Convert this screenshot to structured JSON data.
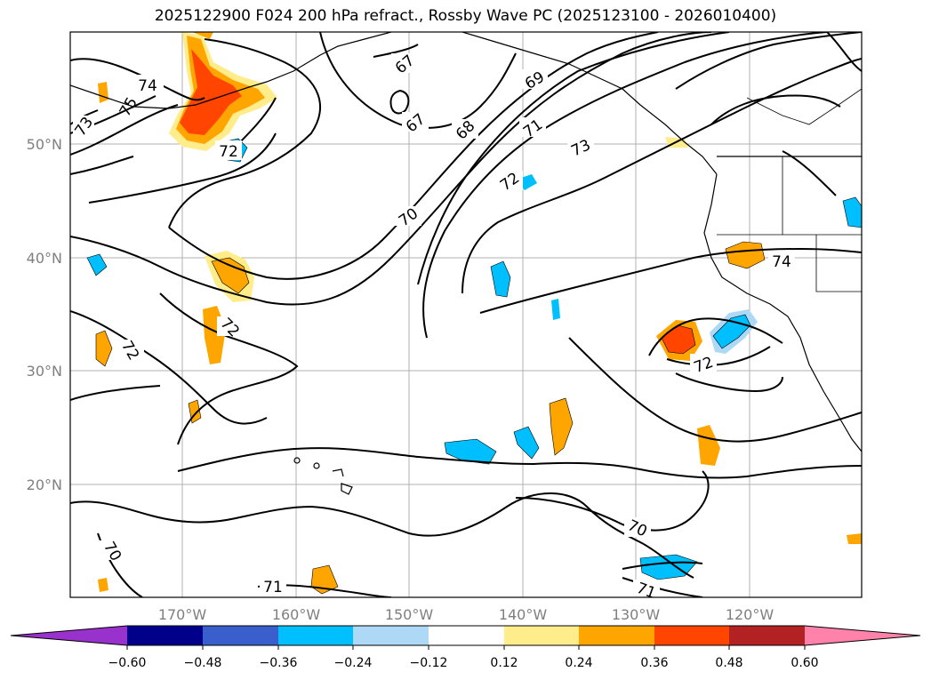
{
  "title": "2025122900 F024 200 hPa refract., Rossby Wave PC (2025123100 - 2026010400)",
  "lat_labels": [
    "50°N",
    "40°N",
    "30°N",
    "20°N"
  ],
  "lon_labels": [
    "170°W",
    "160°W",
    "150°W",
    "140°W",
    "130°W",
    "120°W"
  ],
  "contour_labels": [
    "67",
    "67",
    "69",
    "68",
    "71",
    "73",
    "72",
    "72",
    "70",
    "72",
    "72",
    "74",
    "72",
    "70",
    "70",
    "71",
    "71",
    "74",
    "73",
    "75"
  ],
  "colorbar": {
    "ticks": [
      "−0.60",
      "−0.48",
      "−0.36",
      "−0.24",
      "−0.12",
      "0.12",
      "0.24",
      "0.36",
      "0.48",
      "0.60"
    ],
    "colors": [
      "#9932cc",
      "#00008b",
      "#3a5fcd",
      "#00bfff",
      "#add8f6",
      "#ffffff",
      "#ffec8b",
      "#ffa500",
      "#ff4500",
      "#b22222",
      "#ff82ab"
    ]
  },
  "colors": {
    "contour": "#000000",
    "grid": "#b0b0b0",
    "axis_label": "#7f7f7f"
  }
}
